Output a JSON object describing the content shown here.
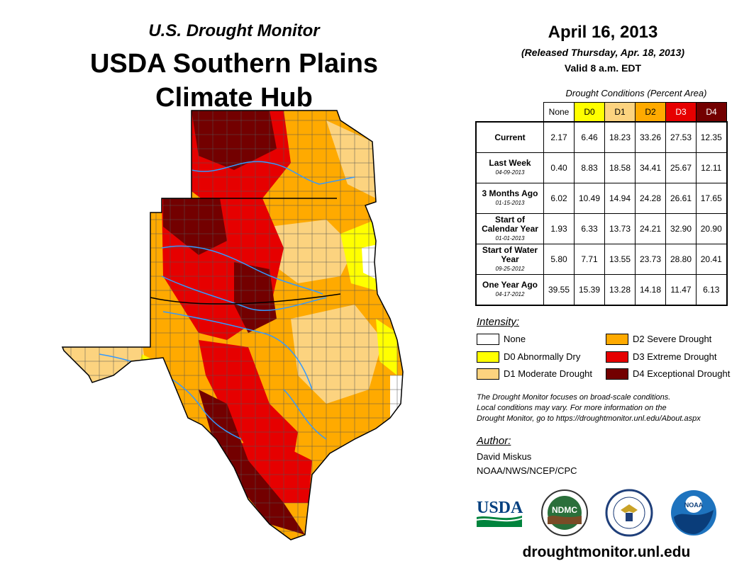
{
  "header": {
    "line1": "U.S. Drought Monitor",
    "line2": "USDA Southern Plains",
    "line3": "Climate Hub"
  },
  "map": {
    "region": "Kansas, Oklahoma, Texas",
    "colors": {
      "none": "#ffffff",
      "d0": "#ffff00",
      "d1": "#fcd37f",
      "d2": "#ffaa00",
      "d3": "#e60000",
      "d4": "#730000",
      "rivers": "#3399ff",
      "county_lines": "#555555"
    }
  },
  "info": {
    "date": "April 16, 2013",
    "released": "(Released Thursday, Apr. 18, 2013)",
    "valid": "Valid 8 a.m. EDT"
  },
  "table": {
    "caption": "Drought Conditions (Percent Area)",
    "headers": [
      "None",
      "D0",
      "D1",
      "D2",
      "D3",
      "D4"
    ],
    "header_colors": [
      "#ffffff",
      "#ffff00",
      "#fcd37f",
      "#ffaa00",
      "#e60000",
      "#730000"
    ],
    "header_text_colors": [
      "#000000",
      "#000000",
      "#000000",
      "#000000",
      "#ffffff",
      "#ffffff"
    ],
    "rows": [
      {
        "label": "Current",
        "sub": "",
        "values": [
          "2.17",
          "6.46",
          "18.23",
          "33.26",
          "27.53",
          "12.35"
        ]
      },
      {
        "label": "Last Week",
        "sub": "04-09-2013",
        "values": [
          "0.40",
          "8.83",
          "18.58",
          "34.41",
          "25.67",
          "12.11"
        ]
      },
      {
        "label": "3 Months Ago",
        "sub": "01-15-2013",
        "values": [
          "6.02",
          "10.49",
          "14.94",
          "24.28",
          "26.61",
          "17.65"
        ]
      },
      {
        "label": "Start of Calendar Year",
        "sub": "01-01-2013",
        "values": [
          "1.93",
          "6.33",
          "13.73",
          "24.21",
          "32.90",
          "20.90"
        ]
      },
      {
        "label": "Start of Water Year",
        "sub": "09-25-2012",
        "values": [
          "5.80",
          "7.71",
          "13.55",
          "23.73",
          "28.80",
          "20.41"
        ]
      },
      {
        "label": "One Year Ago",
        "sub": "04-17-2012",
        "values": [
          "39.55",
          "15.39",
          "13.28",
          "14.18",
          "11.47",
          "6.13"
        ]
      }
    ]
  },
  "legend": {
    "title": "Intensity:",
    "items": [
      {
        "label": "None",
        "color": "#ffffff"
      },
      {
        "label": "D0 Abnormally Dry",
        "color": "#ffff00"
      },
      {
        "label": "D1 Moderate Drought",
        "color": "#fcd37f"
      },
      {
        "label": "D2 Severe Drought",
        "color": "#ffaa00"
      },
      {
        "label": "D3 Extreme Drought",
        "color": "#e60000"
      },
      {
        "label": "D4 Exceptional Drought",
        "color": "#730000"
      }
    ]
  },
  "note": {
    "line1": "The Drought Monitor focuses on broad-scale conditions.",
    "line2": "Local conditions may vary. For more information on the",
    "line3": "Drought Monitor, go to https://droughtmonitor.unl.edu/About.aspx"
  },
  "author": {
    "title": "Author:",
    "name": "David Miskus",
    "org": "NOAA/NWS/NCEP/CPC"
  },
  "logos": {
    "usda": "USDA",
    "ndmc": "NDMC",
    "noaa": "NOAA",
    "doc_icon": "eagle-seal-icon"
  },
  "footer": {
    "website": "droughtmonitor.unl.edu"
  }
}
